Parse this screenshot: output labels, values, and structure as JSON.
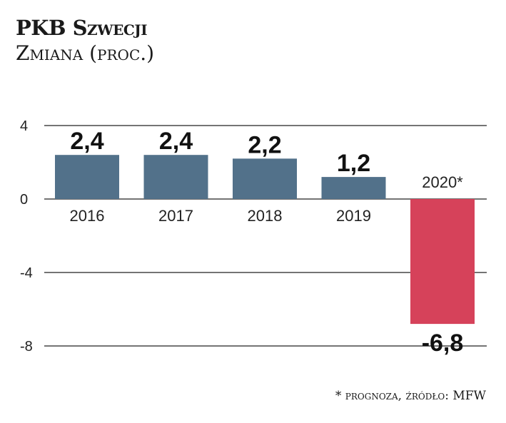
{
  "title": "PKB Szwecji",
  "subtitle": "Zmiana (proc.)",
  "footnote": "* prognoza, źródło: MFW",
  "colors": {
    "positive_bar": "#52718a",
    "negative_bar": "#d6425a",
    "gridline": "#222222"
  },
  "chart_data": {
    "type": "bar",
    "categories": [
      "2016",
      "2017",
      "2018",
      "2019",
      "2020*"
    ],
    "values": [
      2.4,
      2.4,
      2.2,
      1.2,
      -6.8
    ],
    "value_labels": [
      "2,4",
      "2,4",
      "2,2",
      "1,2",
      "-6,8"
    ],
    "ylim": [
      -8,
      4
    ],
    "yticks": [
      4,
      0,
      -4,
      -8
    ],
    "ytick_labels": [
      "4",
      "0",
      "-4",
      "-8"
    ],
    "grid": true,
    "title": "PKB Szwecji",
    "xlabel": "",
    "ylabel": ""
  }
}
